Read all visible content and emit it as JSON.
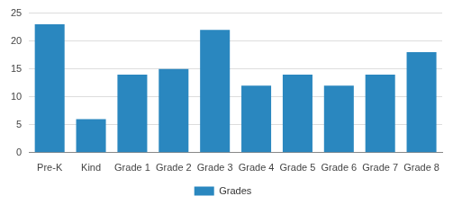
{
  "chart_data": {
    "type": "bar",
    "categories": [
      "Pre-K",
      "Kind",
      "Grade 1",
      "Grade 2",
      "Grade 3",
      "Grade 4",
      "Grade 5",
      "Grade 6",
      "Grade 7",
      "Grade 8"
    ],
    "series": [
      {
        "name": "Grades",
        "color": "#2a87bf",
        "values": [
          23,
          6,
          14,
          15,
          22,
          12,
          14,
          12,
          14,
          18
        ]
      }
    ],
    "ylim": [
      0,
      25
    ],
    "yticks": [
      0,
      5,
      10,
      15,
      20,
      25
    ],
    "grid": true,
    "legend": "bottom"
  }
}
